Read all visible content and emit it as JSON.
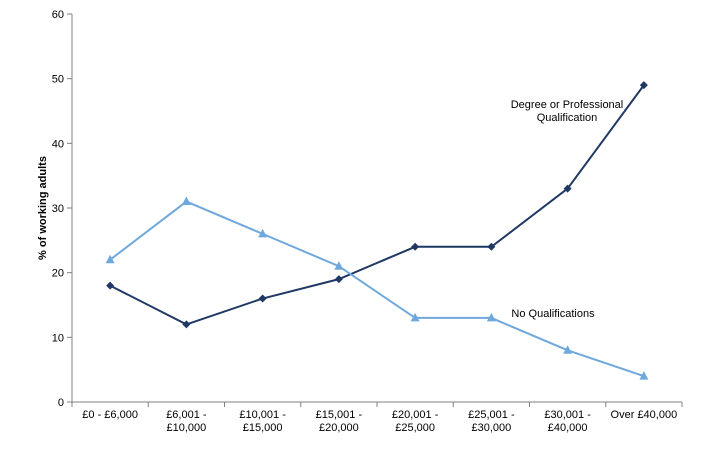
{
  "chart_data": {
    "type": "line",
    "title": "",
    "xlabel": "",
    "ylabel": "% of working adults",
    "ylim": [
      0,
      60
    ],
    "yticks": [
      0,
      10,
      20,
      30,
      40,
      50,
      60
    ],
    "grid": false,
    "categories": [
      [
        "£0 - £6,000"
      ],
      [
        "£6,001 -",
        "£10,000"
      ],
      [
        "£10,001 -",
        "£15,000"
      ],
      [
        "£15,001 -",
        "£20,000"
      ],
      [
        "£20,001 -",
        "£25,000"
      ],
      [
        "£25,001 -",
        "£30,000"
      ],
      [
        "£30,001 -",
        "£40,000"
      ],
      [
        "Over £40,000"
      ]
    ],
    "series": [
      {
        "name": "Degree or Professional Qualification",
        "label_lines": [
          "Degree or Professional",
          "Qualification"
        ],
        "color": "#1f3864",
        "marker": "diamond",
        "values": [
          18,
          12,
          16,
          19,
          24,
          24,
          33,
          49
        ]
      },
      {
        "name": "No Qualifications",
        "label_lines": [
          "No Qualifications"
        ],
        "color": "#6fa8dc",
        "marker": "triangle",
        "values": [
          22,
          31,
          26,
          21,
          13,
          13,
          8,
          4
        ]
      }
    ]
  }
}
